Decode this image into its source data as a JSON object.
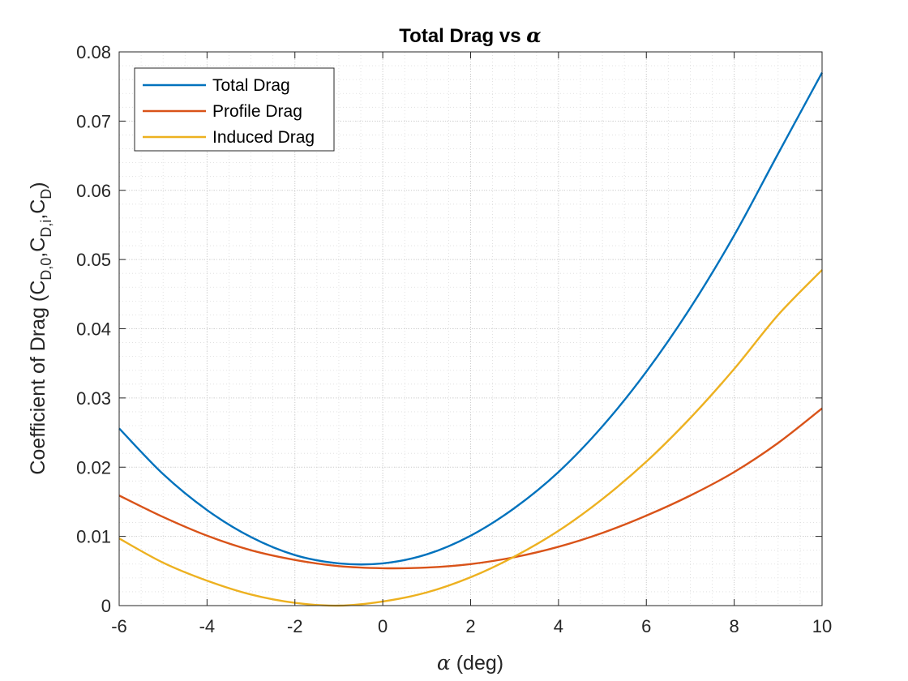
{
  "chart_data": {
    "type": "line",
    "title": {
      "text": "Total Drag vs ",
      "symbol": "α"
    },
    "xlabel": {
      "symbol": "α",
      "text": " (deg)"
    },
    "ylabel": {
      "prefix": "Coefficient of Drag (C",
      "sub1": "D,0",
      "sep1": ",C",
      "sub2": "D,i",
      "sep2": ",C",
      "sub3": "D",
      "suffix": ")"
    },
    "xlim": [
      -6,
      10
    ],
    "ylim": [
      0,
      0.08
    ],
    "xticks": [
      -6,
      -4,
      -2,
      0,
      2,
      4,
      6,
      8,
      10
    ],
    "xtick_labels": [
      "-6",
      "-4",
      "-2",
      "0",
      "2",
      "4",
      "6",
      "8",
      "10"
    ],
    "yticks": [
      0,
      0.01,
      0.02,
      0.03,
      0.04,
      0.05,
      0.06,
      0.07,
      0.08
    ],
    "ytick_labels": [
      "0",
      "0.01",
      "0.02",
      "0.03",
      "0.04",
      "0.05",
      "0.06",
      "0.07",
      "0.08"
    ],
    "grid": "major and minor, dotted",
    "legend_position": "top-left",
    "x": [
      -6,
      -5,
      -4,
      -3,
      -2,
      -1,
      0,
      1,
      2,
      3,
      4,
      5,
      6,
      7,
      8,
      9,
      10
    ],
    "series": [
      {
        "name": "Total Drag",
        "color": "#0072BD",
        "values": [
          0.0256,
          0.019,
          0.0138,
          0.0099,
          0.0073,
          0.0061,
          0.0061,
          0.0074,
          0.0101,
          0.0141,
          0.0193,
          0.0259,
          0.0338,
          0.043,
          0.0535,
          0.0653,
          0.077
        ]
      },
      {
        "name": "Profile Drag",
        "color": "#D95319",
        "values": [
          0.0159,
          0.0128,
          0.0101,
          0.008,
          0.0066,
          0.0057,
          0.0054,
          0.0055,
          0.006,
          0.007,
          0.0085,
          0.0105,
          0.013,
          0.0159,
          0.0193,
          0.0235,
          0.0285
        ]
      },
      {
        "name": "Induced Drag",
        "color": "#EDB120",
        "values": [
          0.0097,
          0.0062,
          0.0036,
          0.0016,
          0.0004,
          0.0,
          0.0006,
          0.0019,
          0.0041,
          0.0071,
          0.0108,
          0.0154,
          0.0208,
          0.0271,
          0.0342,
          0.042,
          0.0485
        ]
      }
    ]
  }
}
